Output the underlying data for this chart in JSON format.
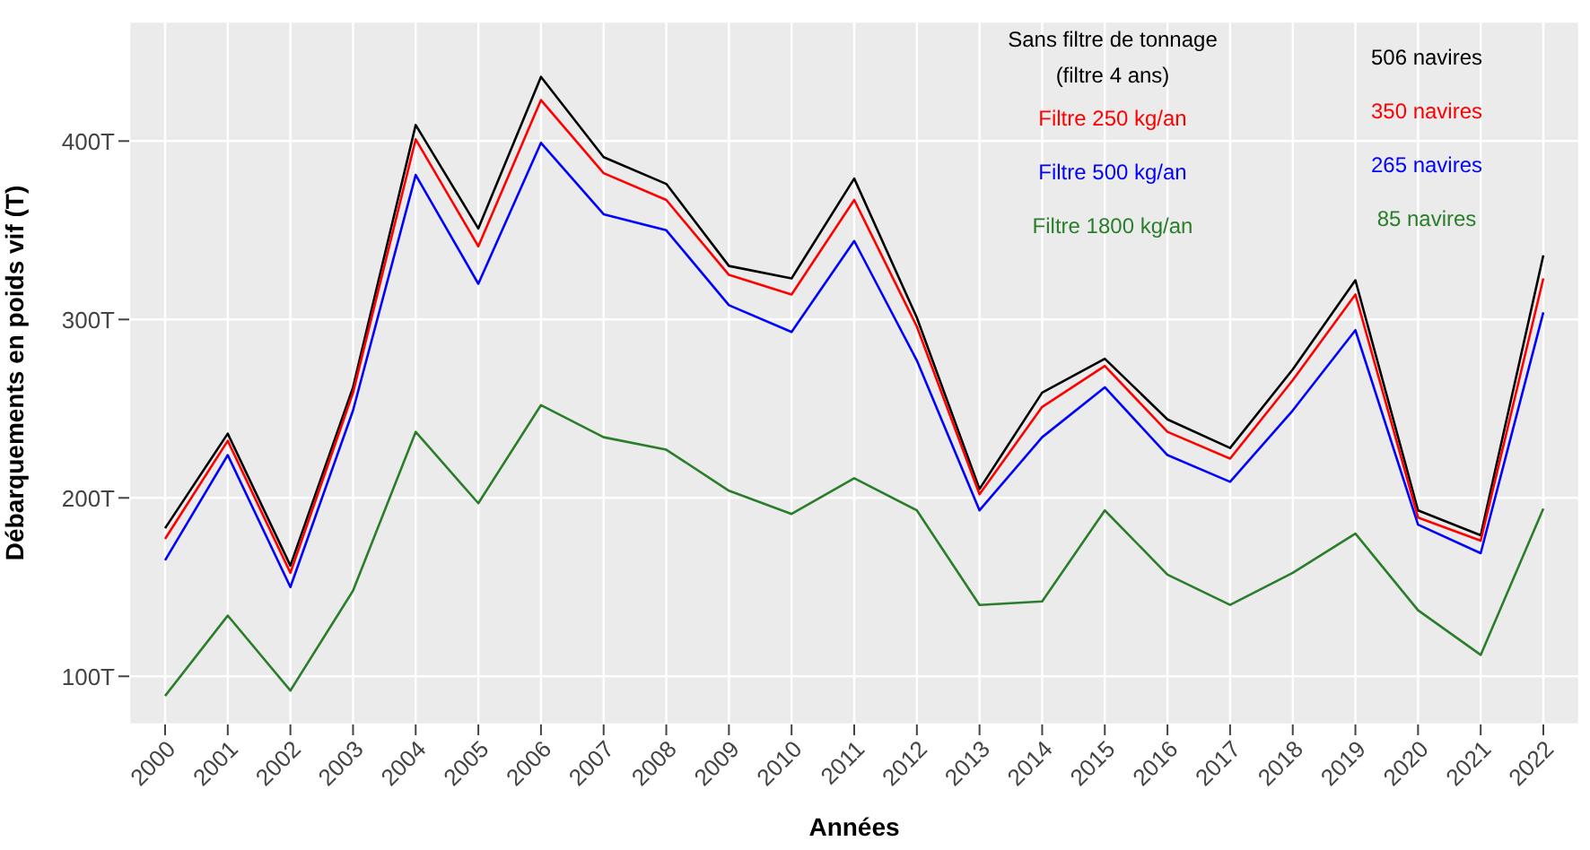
{
  "chart_data": {
    "type": "line",
    "xlabel": "Années",
    "ylabel": "Débarquements en poids vif (T)",
    "categories": [
      "2000",
      "2001",
      "2002",
      "2003",
      "2004",
      "2005",
      "2006",
      "2007",
      "2008",
      "2009",
      "2010",
      "2011",
      "2012",
      "2013",
      "2014",
      "2015",
      "2016",
      "2017",
      "2018",
      "2019",
      "2020",
      "2021",
      "2022"
    ],
    "series": [
      {
        "name": "Sans filtre de tonnage (filtre 4 ans)",
        "color": "#000000",
        "values": [
          183,
          236,
          162,
          262,
          409,
          351,
          436,
          391,
          376,
          330,
          323,
          379,
          301,
          205,
          259,
          278,
          244,
          228,
          272,
          322,
          193,
          179,
          336
        ]
      },
      {
        "name": "Filtre 250 kg/an",
        "color": "#ff0000",
        "values": [
          177,
          232,
          158,
          259,
          401,
          341,
          423,
          382,
          367,
          325,
          314,
          367,
          296,
          202,
          251,
          274,
          237,
          222,
          266,
          314,
          189,
          176,
          323
        ]
      },
      {
        "name": "Filtre 500 kg/an",
        "color": "#0000ff",
        "values": [
          165,
          224,
          150,
          249,
          381,
          320,
          399,
          359,
          350,
          308,
          293,
          344,
          277,
          193,
          234,
          262,
          224,
          209,
          249,
          294,
          185,
          169,
          304
        ]
      },
      {
        "name": "Filtre 1800 kg/an",
        "color": "#2a7d2a",
        "values": [
          89,
          134,
          92,
          148,
          237,
          197,
          252,
          234,
          227,
          204,
          191,
          211,
          193,
          140,
          142,
          193,
          157,
          140,
          158,
          180,
          137,
          112,
          194
        ]
      }
    ],
    "annotations": [
      "506 navires",
      "350 navires",
      "265 navires",
      "85 navires"
    ],
    "ylim": [
      73,
      467
    ],
    "yticks": [
      {
        "value": 100,
        "label": "100T"
      },
      {
        "value": 200,
        "label": "200T"
      },
      {
        "value": 300,
        "label": "300T"
      },
      {
        "value": 400,
        "label": "400T"
      }
    ],
    "grid": true,
    "marker": "none",
    "line_style": "solid"
  }
}
